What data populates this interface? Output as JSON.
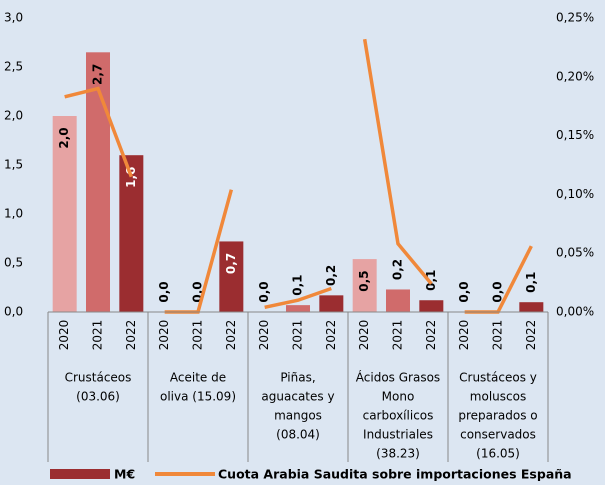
{
  "chart_data": {
    "type": "bar_line",
    "categories": [
      [
        "Crustáceos",
        "(03.06)"
      ],
      [
        "Aceite de",
        "oliva  (15.09)"
      ],
      [
        "Piñas,",
        "aguacates y",
        "mangos",
        "(08.04)"
      ],
      [
        "Ácidos Grasos",
        "Mono",
        "carboxílicos",
        "Industriales",
        "(38.23)"
      ],
      [
        "Crustáceos y",
        "moluscos",
        "preparados o",
        "conservados",
        "(16.05)"
      ]
    ],
    "sub_categories": [
      "2020",
      "2021",
      "2022"
    ],
    "sub_category_colors": [
      "#e6a3a3",
      "#d06b6b",
      "#9b2d30"
    ],
    "series": [
      {
        "name": "M€",
        "color": "#9b2d30",
        "type": "bar",
        "values": [
          [
            2.0,
            2.65,
            1.6
          ],
          [
            0,
            0,
            0.72
          ],
          [
            0,
            0.07,
            0.17
          ],
          [
            0.54,
            0.23,
            0.12
          ],
          [
            0,
            0,
            0.1
          ]
        ],
        "value_labels": [
          [
            "2,0",
            "2,7",
            "1,6"
          ],
          [
            "0,0",
            "0,0",
            "0,7"
          ],
          [
            "0,0",
            "0,1",
            "0,2"
          ],
          [
            "0,5",
            "0,2",
            "0,1"
          ],
          [
            "0,0",
            "0,0",
            "0,1"
          ]
        ]
      },
      {
        "name": "Cuota Arabia Saudita sobre importaciones España",
        "color": "#f0883a",
        "type": "line",
        "axis": "y2",
        "values": [
          [
            0.183,
            0.19,
            0.115
          ],
          [
            0,
            0,
            0.104
          ],
          [
            0.004,
            0.01,
            0.02
          ],
          [
            0.232,
            0.058,
            0.024
          ],
          [
            0,
            0,
            0.056
          ]
        ]
      }
    ],
    "ylim": [
      0,
      3
    ],
    "yticks": [
      {
        "value": 0,
        "label": "0,0"
      },
      {
        "value": 0.5,
        "label": "0,5"
      },
      {
        "value": 1,
        "label": "1,0"
      },
      {
        "value": 1.5,
        "label": "1,5"
      },
      {
        "value": 2,
        "label": "2,0"
      },
      {
        "value": 2.5,
        "label": "2,5"
      },
      {
        "value": 3,
        "label": "3,0"
      }
    ],
    "y2lim": [
      0,
      0.25
    ],
    "y2ticks": [
      {
        "value": 0,
        "label": "0,00%"
      },
      {
        "value": 0.05,
        "label": "0,05%"
      },
      {
        "value": 0.1,
        "label": "0,10%"
      },
      {
        "value": 0.15,
        "label": "0,15%"
      },
      {
        "value": 0.2,
        "label": "0,20%"
      },
      {
        "value": 0.25,
        "label": "0,25%"
      }
    ]
  }
}
